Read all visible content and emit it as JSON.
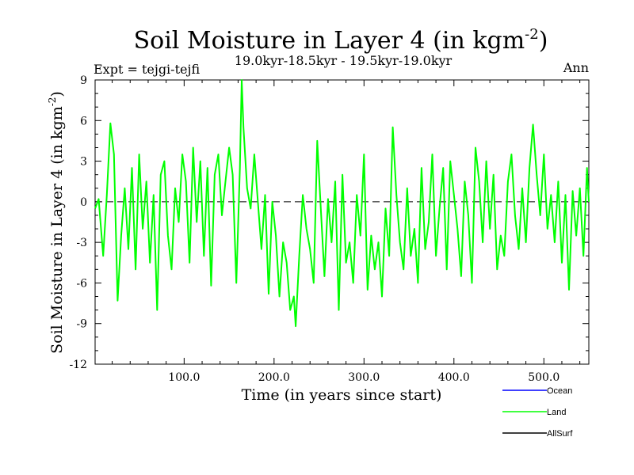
{
  "chart_data": {
    "type": "line",
    "title": "Soil Moisture in Layer 4 (in kgm",
    "title_sup": "-2",
    "title_close": ")",
    "subtitle": "19.0kyr-18.5kyr - 19.5kyr-19.0kyr",
    "expt_label": "Expt = tejgi-tejfi",
    "season_label": "Ann",
    "xlabel": "Time (in years since start)",
    "ylabel": "Soil Moisture in Layer 4 (in kgm",
    "ylabel_sup": "-2",
    "ylabel_close": ")",
    "xlim": [
      1,
      550
    ],
    "ylim": [
      -12,
      9
    ],
    "xticks": [
      100,
      200,
      300,
      400,
      500
    ],
    "xtick_labels": [
      "100.0",
      "200.0",
      "300.0",
      "400.0",
      "500.0"
    ],
    "yticks": [
      -12,
      -9,
      -6,
      -3,
      0,
      3,
      6,
      9
    ],
    "ytick_labels": [
      "-12",
      "-9",
      "-6",
      "-3",
      "0",
      "3",
      "6",
      "9"
    ],
    "zero_line": true,
    "legend_position": "bottom-right",
    "series": [
      {
        "name": "Ocean",
        "color": "#0000ff",
        "x": [],
        "values": []
      },
      {
        "name": "Land",
        "color": "#00ff00",
        "x": [
          1,
          5,
          10,
          14,
          18,
          22,
          26,
          30,
          34,
          38,
          42,
          46,
          50,
          54,
          58,
          62,
          66,
          70,
          74,
          78,
          82,
          86,
          90,
          94,
          98,
          102,
          106,
          110,
          114,
          118,
          122,
          126,
          130,
          134,
          138,
          142,
          146,
          150,
          154,
          158,
          162,
          164,
          166,
          170,
          174,
          178,
          182,
          186,
          190,
          194,
          198,
          202,
          206,
          210,
          214,
          218,
          222,
          224,
          228,
          232,
          236,
          240,
          244,
          248,
          252,
          256,
          260,
          264,
          268,
          272,
          276,
          280,
          284,
          288,
          292,
          296,
          300,
          304,
          308,
          312,
          316,
          320,
          324,
          328,
          332,
          336,
          340,
          344,
          348,
          352,
          356,
          360,
          364,
          368,
          372,
          376,
          380,
          384,
          388,
          392,
          396,
          400,
          404,
          408,
          412,
          416,
          420,
          424,
          428,
          432,
          436,
          440,
          444,
          448,
          452,
          456,
          460,
          464,
          468,
          472,
          476,
          480,
          484,
          488,
          492,
          496,
          500,
          504,
          508,
          512,
          516,
          520,
          524,
          528,
          532,
          536,
          540,
          544,
          548,
          550
        ],
        "values": [
          -0.5,
          0.2,
          -4.0,
          0.5,
          5.8,
          3.5,
          -7.3,
          -2.5,
          1.0,
          -3.5,
          2.5,
          -5.0,
          3.5,
          -2.0,
          1.5,
          -4.5,
          0.5,
          -8.0,
          2.0,
          3.0,
          -2.5,
          -5.0,
          1.0,
          -1.5,
          3.5,
          1.5,
          -4.5,
          4.0,
          -1.5,
          3.0,
          -4.0,
          2.5,
          -6.2,
          2.0,
          3.5,
          -1.0,
          1.5,
          4.0,
          2.0,
          -6.0,
          2.5,
          9.0,
          5.5,
          1.0,
          -0.5,
          3.5,
          0.0,
          -3.5,
          0.5,
          -6.8,
          0.0,
          -2.5,
          -7.0,
          -3.0,
          -4.5,
          -8.0,
          -7.0,
          -9.2,
          -4.0,
          0.5,
          -2.0,
          -3.5,
          -6.0,
          4.5,
          -0.5,
          -5.5,
          0.2,
          -3.0,
          1.5,
          -8.0,
          2.0,
          -4.5,
          -3.0,
          -6.0,
          0.5,
          -2.5,
          3.5,
          -6.5,
          -2.5,
          -5.0,
          -3.0,
          -7.0,
          -0.5,
          -4.0,
          5.5,
          0.5,
          -3.0,
          -5.0,
          1.0,
          -4.0,
          -2.0,
          -6.0,
          2.5,
          -3.5,
          -1.5,
          3.5,
          -4.0,
          -0.5,
          2.5,
          -5.0,
          3.0,
          0.5,
          -2.0,
          -5.5,
          1.5,
          -1.0,
          -6.0,
          4.0,
          1.5,
          -3.0,
          3.0,
          -2.0,
          2.0,
          -5.0,
          -2.5,
          -4.0,
          1.5,
          3.5,
          -1.0,
          -3.5,
          1.0,
          -3.0,
          2.5,
          5.7,
          2.0,
          -1.0,
          3.5,
          -2.0,
          0.5,
          -3.0,
          1.5,
          -4.5,
          0.5,
          -6.5,
          0.8,
          -2.5,
          1.0,
          -4.0,
          2.5,
          0.0
        ]
      }
    ]
  }
}
